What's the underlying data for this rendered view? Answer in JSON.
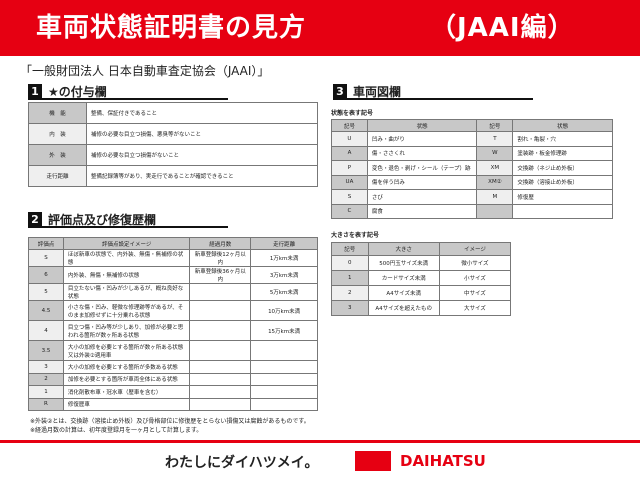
{
  "title": "車両状態証明書の見方",
  "title_sub": "（JAAI編）",
  "org": "「一般財団法人 日本自動車査定協会（JAAI）」",
  "s1": {
    "num": "1",
    "title": "★の付与欄",
    "rows": [
      [
        "機　能",
        "整備、保証付きであること"
      ],
      [
        "内　装",
        "補修の必要な目立つ損傷、悪臭等がないこと"
      ],
      [
        "外　装",
        "補修の必要な目立つ損傷がないこと"
      ],
      [
        "走行距離",
        "整備記録簿等があり、実走行であることが確認できること"
      ]
    ]
  },
  "s2": {
    "num": "2",
    "title": "評価点及び修復歴欄",
    "headers": [
      "評価点",
      "評価点設定イメージ",
      "経過月数",
      "走行距離"
    ],
    "rows": [
      [
        "S",
        "ほぼ新車の状態で、内外装、無傷・無補修の状態",
        "新車登録後12ヶ月以内",
        "1万km未満"
      ],
      [
        "6",
        "内外装、無傷・無補修の状態",
        "新車登録後36ヶ月以内",
        "3万km未満"
      ],
      [
        "5",
        "目立たない傷・凹みが少しあるが、概ね良好な状態",
        "",
        "5万km未満"
      ],
      [
        "4.5",
        "小さな傷・凹み、軽微な修理跡等があるが、そのまま加修せずに十分乗れる状態",
        "",
        "10万km未満"
      ],
      [
        "4",
        "目立つ傷・凹み等が少しあり、加修が必要と思われる箇所が数ヶ所ある状態",
        "",
        "15万km未満"
      ],
      [
        "3.5",
        "大小の加修を必要とする箇所が数ヶ所ある状態又は外装②適用車",
        "",
        ""
      ],
      [
        "3",
        "大小の加修を必要とする箇所が多数ある状態",
        "",
        ""
      ],
      [
        "2",
        "加修を必要とする箇所が車両全体にある状態",
        "",
        ""
      ],
      [
        "1",
        "消化剤散布車・冠水車（歴車を含む）",
        "",
        ""
      ],
      [
        "R",
        "修復歴車",
        "",
        ""
      ]
    ]
  },
  "notes": [
    "※外装②とは、交換跡（溶接止め外板）及び骨格部位に修復歴をとらない損傷又は腐蝕があるものです。",
    "※経過月数の計算は、初年度登録月を一ヶ月として計算します。"
  ],
  "s3": {
    "num": "3",
    "title": "車両図欄",
    "state_label": "状態を表す記号",
    "state_headers": [
      "記号",
      "状態",
      "記号",
      "状態"
    ],
    "state_rows": [
      [
        "U",
        "凹み・曲がり",
        "T",
        "割れ・亀裂・穴"
      ],
      [
        "A",
        "傷・ささくれ",
        "W",
        "塗装跡・板金修理跡"
      ],
      [
        "P",
        "変色・退色・剥げ・シール（テープ）跡",
        "XM",
        "交換跡（ネジ止め外板）"
      ],
      [
        "UA",
        "傷を伴う凹み",
        "XM②",
        "交換跡（溶接止め外板）"
      ],
      [
        "S",
        "さび",
        "M",
        "修復歴"
      ],
      [
        "C",
        "腐食",
        "",
        ""
      ]
    ],
    "size_label": "大きさを表す記号",
    "size_headers": [
      "記号",
      "大きさ",
      "イメージ"
    ],
    "size_rows": [
      [
        "0",
        "500円玉サイズ未満",
        "微小サイズ"
      ],
      [
        "1",
        "カードサイズ未満",
        "小サイズ"
      ],
      [
        "2",
        "A4サイズ未満",
        "中サイズ"
      ],
      [
        "3",
        "A4サイズを超えたもの",
        "大サイズ"
      ]
    ]
  },
  "footer": {
    "slogan": "わたしにダイハツメイ。",
    "brand": "DAIHATSU",
    "brand_color": "#e60012"
  }
}
